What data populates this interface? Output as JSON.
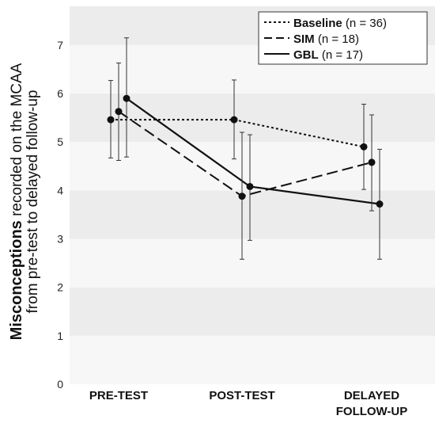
{
  "chart_data": {
    "type": "line",
    "categories": [
      "PRE-TEST",
      "POST-TEST",
      "DELAYED FOLLOW-UP"
    ],
    "category_lines": [
      [
        "PRE-TEST"
      ],
      [
        "POST-TEST"
      ],
      [
        "DELAYED",
        "FOLLOW-UP"
      ]
    ],
    "ylabel_bold": "Misconceptions",
    "ylabel_rest": " recorded on the MCAA",
    "ylabel_line2": "from pre-test to delayed follow-up",
    "ylim": [
      0,
      7.8
    ],
    "yticks": [
      0,
      1,
      2,
      3,
      4,
      5,
      6,
      7
    ],
    "grid": "alternating horizontal bands",
    "legend_position": "top-right",
    "series": [
      {
        "name": "Baseline",
        "legend_detail": "(n = 36)",
        "dash": "dotted",
        "values": [
          5.46,
          5.46,
          4.9
        ],
        "err_low": [
          4.67,
          4.65,
          4.02
        ],
        "err_high": [
          6.27,
          6.28,
          5.78
        ]
      },
      {
        "name": "SIM",
        "legend_detail": "(n = 18)",
        "dash": "dashed",
        "values": [
          5.63,
          3.88,
          4.58
        ],
        "err_low": [
          4.62,
          2.58,
          3.58
        ],
        "err_high": [
          6.63,
          5.2,
          5.56
        ]
      },
      {
        "name": "GBL",
        "legend_detail": "(n = 17)",
        "dash": "solid",
        "values": [
          5.9,
          4.08,
          3.72
        ],
        "err_low": [
          4.69,
          2.97,
          2.58
        ],
        "err_high": [
          7.15,
          5.15,
          4.85
        ]
      }
    ]
  }
}
